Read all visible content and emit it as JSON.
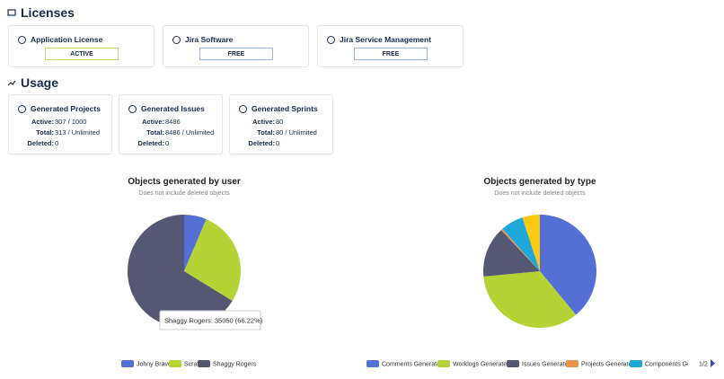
{
  "licenses": {
    "title": "Licenses",
    "cards": [
      {
        "name": "Application License",
        "status": "ACTIVE"
      },
      {
        "name": "Jira Software",
        "status": "FREE"
      },
      {
        "name": "Jira Service Management",
        "status": "FREE"
      }
    ]
  },
  "usage": {
    "title": "Usage",
    "cards": [
      {
        "name": "Generated Projects",
        "rows": [
          {
            "label": "Active:",
            "value": "307 / 1000"
          },
          {
            "label": "Total:",
            "value": "313 / Unlimited"
          },
          {
            "label": "Deleted:",
            "value": 0
          }
        ]
      },
      {
        "name": "Generated Issues",
        "rows": [
          {
            "label": "Active:",
            "value": 8486
          },
          {
            "label": "Total:",
            "value": "8486 / Unlimited"
          },
          {
            "label": "Deleted:",
            "value": 0
          }
        ]
      },
      {
        "name": "Generated Sprints",
        "rows": [
          {
            "label": "Active:",
            "value": 80
          },
          {
            "label": "Total:",
            "value": "80 / Unlimited"
          },
          {
            "label": "Deleted:",
            "value": 0
          }
        ]
      }
    ]
  },
  "chart_data": [
    {
      "type": "pie",
      "title": "Objects generated by user",
      "subtitle": "Does not include deleted objects",
      "categories": [
        "Johny Bravo",
        "Scrat",
        "Shaggy Rogers"
      ],
      "values": [
        3387,
        14493,
        35050
      ],
      "colors": [
        "#5470d6",
        "#b5d334",
        "#555873"
      ],
      "tooltip": "Shaggy Rogers: 35050 (66.22%)"
    },
    {
      "type": "pie",
      "title": "Objects generated by type",
      "subtitle": "Does not include deleted objects",
      "categories": [
        "Comments Generated",
        "Worklogs Generated",
        "Issues Generated",
        "Projects Generated",
        "Components Gen",
        null
      ],
      "values": [
        39,
        34.5,
        14.5,
        0.5,
        6.5,
        5
      ],
      "colors": [
        "#5470d6",
        "#b5d334",
        "#555873",
        "#f0934a",
        "#1ea7d8",
        "#f9ca0f"
      ],
      "legend_page": "1/2"
    }
  ]
}
